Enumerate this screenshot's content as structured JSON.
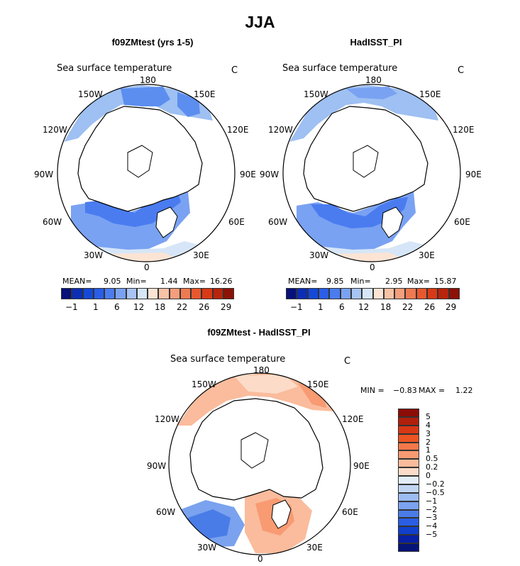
{
  "title": "JJA",
  "panels": [
    {
      "title": "f09ZMtest (yrs 1-5)",
      "field": "Sea surface temperature",
      "units": "C",
      "lon_labels": {
        "top": "180",
        "top_left": "150W",
        "top_right": "150E",
        "upper_left": "120W",
        "upper_right": "120E",
        "left": "90W",
        "right": "90E",
        "lower_left": "60W",
        "lower_right": "60E",
        "bottom_left": "30W",
        "bottom_right": "30E",
        "bottom": "0"
      },
      "mean_label": "MEAN=",
      "mean": "9.05",
      "min_label": "Min=",
      "min": "1.44",
      "max_label": "Max=",
      "max": "16.26"
    },
    {
      "title": "HadISST_PI",
      "field": "Sea surface temperature",
      "units": "C",
      "lon_labels": {
        "top": "180",
        "top_left": "150W",
        "top_right": "150E",
        "upper_left": "120W",
        "upper_right": "120E",
        "left": "90W",
        "right": "90E",
        "lower_left": "60W",
        "lower_right": "60E",
        "bottom_left": "30W",
        "bottom_right": "30E",
        "bottom": "0"
      },
      "mean_label": "MEAN=",
      "mean": "9.85",
      "min_label": "Min=",
      "min": "2.95",
      "max_label": "Max=",
      "max": "15.87"
    }
  ],
  "diff_panel": {
    "title": "f09ZMtest - HadISST_PI",
    "field": "Sea surface temperature",
    "units": "C",
    "lon_labels": {
      "top": "180",
      "top_left": "150W",
      "top_right": "150E",
      "upper_left": "120W",
      "upper_right": "120E",
      "left": "90W",
      "right": "90E",
      "lower_left": "60W",
      "lower_right": "60E",
      "bottom_left": "30W",
      "bottom_right": "30E",
      "bottom": "0"
    },
    "min_label": "MIN =",
    "min": "−0.83",
    "max_label": "MAX =",
    "max": "1.22"
  },
  "colorbar_top": {
    "colors": [
      "#08107a",
      "#0c2eb4",
      "#1448d8",
      "#2a5ee8",
      "#4a7cf0",
      "#7aa2f2",
      "#a8c4f4",
      "#d6e6f8",
      "#fbe4d4",
      "#f8c2a6",
      "#f49e7c",
      "#ee7a52",
      "#e8582e",
      "#d83a16",
      "#b8240c",
      "#8c1206"
    ],
    "tick_labels": [
      "−1",
      "1",
      "6",
      "12",
      "18",
      "22",
      "26",
      "29"
    ]
  },
  "colorbar_diff": {
    "colors": [
      "#8c0c06",
      "#b0200c",
      "#d83816",
      "#ee5424",
      "#f6784a",
      "#f89a72",
      "#fabc9c",
      "#fcdcc8",
      "#e4eef8",
      "#c2d6f4",
      "#9cbcf2",
      "#7aa2ee",
      "#4a7ce8",
      "#2a5ee4",
      "#1040cc",
      "#0820a6",
      "#061478"
    ],
    "tick_labels": [
      "5",
      "4",
      "3",
      "2",
      "1",
      "0.5",
      "0.2",
      "0",
      "−0.2",
      "−0.5",
      "−1",
      "−2",
      "−3",
      "−4",
      "−5"
    ]
  }
}
